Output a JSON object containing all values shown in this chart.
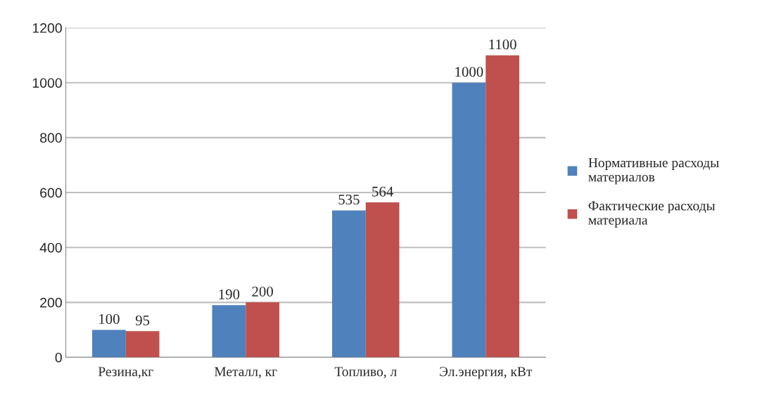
{
  "chart_data": {
    "type": "bar",
    "categories": [
      "Резина,кг",
      "Металл, кг",
      "Топливо, л",
      "Эл.энергия, кВт"
    ],
    "series": [
      {
        "name": "Нормативные расходы\nматериалов",
        "color": "#4f81bd",
        "values": [
          100,
          190,
          535,
          1000
        ]
      },
      {
        "name": "Фактические расходы\nматериала",
        "color": "#c0504d",
        "values": [
          95,
          200,
          564,
          1100
        ]
      }
    ],
    "ylim": [
      0,
      1200
    ],
    "yticks": [
      0,
      200,
      400,
      600,
      800,
      1000,
      1200
    ],
    "grid": "y",
    "legend": "right",
    "data_labels": true
  }
}
